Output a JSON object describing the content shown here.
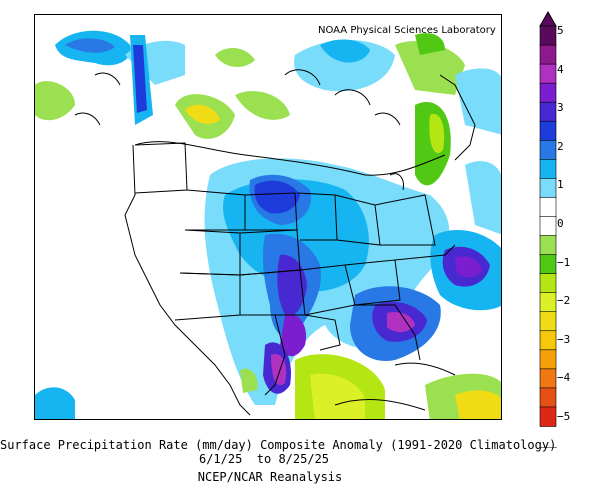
{
  "credit": "NOAA Physical Sciences Laboratory",
  "caption": {
    "line1": "Surface Precipitation Rate (mm/day) Composite Anomaly (1991-2020 Climatology)",
    "line2": "6/1/25  to 8/25/25",
    "line3": "NCEP/NCAR Reanalysis"
  },
  "colorbar": {
    "tick_labels": [
      "5",
      "4",
      "3",
      "2",
      "1",
      "0",
      "−1",
      "−2",
      "−3",
      "−4",
      "−5"
    ],
    "colors": [
      "#5a0a5a",
      "#8c1a8c",
      "#b030c0",
      "#7a1ed0",
      "#4828d0",
      "#1e3cdc",
      "#2878e6",
      "#16b4f0",
      "#78dcfa",
      "#ffffff",
      "#ffffff",
      "#9be050",
      "#50c814",
      "#b4e614",
      "#dcf028",
      "#f0dc14",
      "#f5c80a",
      "#f5a00a",
      "#f07814",
      "#e65014",
      "#dc2814"
    ]
  },
  "map": {
    "regions": [
      {
        "name": "ocean-blue-nw-1",
        "color": "#16b4f0"
      },
      {
        "name": "cascade-dark",
        "color": "#1e3cdc"
      },
      {
        "name": "plains-purple",
        "color": "#7a1ed0"
      },
      {
        "name": "texas-purple",
        "color": "#b030c0"
      },
      {
        "name": "se-purple",
        "color": "#b030c0"
      },
      {
        "name": "atlantic-purple",
        "color": "#7a1ed0"
      },
      {
        "name": "gulf-yellow",
        "color": "#dcf028"
      },
      {
        "name": "caribbean-yellow",
        "color": "#f0dc14"
      },
      {
        "name": "canada-green",
        "color": "#50c814"
      }
    ]
  }
}
